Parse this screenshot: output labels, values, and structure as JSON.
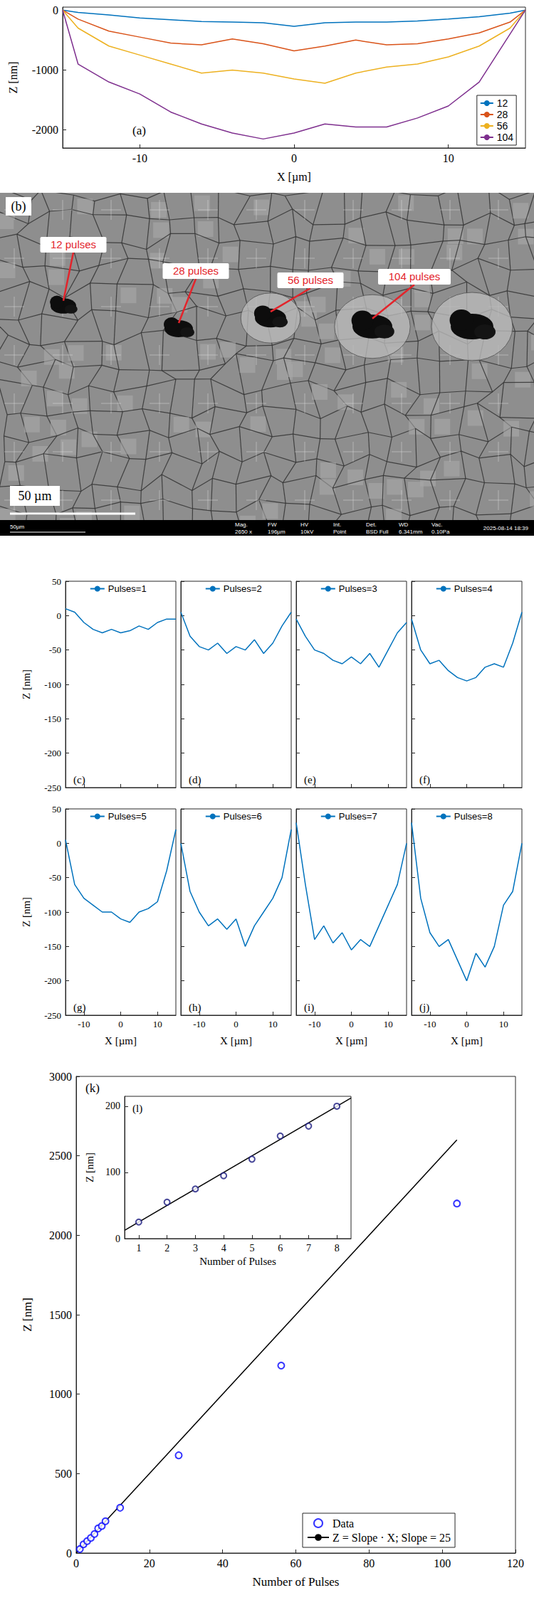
{
  "chart_data": [
    {
      "type": "line",
      "label": "(a)",
      "x_label": "X [µm]",
      "y_label": "Z [nm]",
      "x": [
        -15,
        -14,
        -12,
        -10,
        -8,
        -6,
        -4,
        -2,
        0,
        2,
        4,
        6,
        8,
        10,
        12,
        14,
        15
      ],
      "series": [
        {
          "name": "12",
          "color": "#0072bd",
          "values": [
            0,
            -40,
            -80,
            -130,
            -160,
            -190,
            -200,
            -210,
            -270,
            -210,
            -200,
            -200,
            -180,
            -150,
            -110,
            -50,
            0
          ]
        },
        {
          "name": "28",
          "color": "#d95319",
          "values": [
            0,
            -150,
            -350,
            -450,
            -550,
            -580,
            -480,
            -560,
            -680,
            -600,
            -500,
            -580,
            -560,
            -480,
            -380,
            -200,
            0
          ]
        },
        {
          "name": "56",
          "color": "#edb120",
          "values": [
            0,
            -300,
            -600,
            -750,
            -900,
            -1050,
            -1000,
            -1050,
            -1150,
            -1220,
            -1050,
            -950,
            -900,
            -780,
            -600,
            -300,
            0
          ]
        },
        {
          "name": "104",
          "color": "#7e2f8e",
          "values": [
            0,
            -900,
            -1200,
            -1400,
            -1700,
            -1900,
            -2050,
            -2150,
            -2050,
            -1900,
            -1950,
            -1950,
            -1800,
            -1600,
            -1200,
            -400,
            0
          ]
        }
      ],
      "xlim": [
        -15,
        15
      ],
      "xticks": [
        -10,
        0,
        10
      ],
      "ylim": [
        -2300,
        50
      ],
      "yticks": [
        -2000,
        -1000,
        0
      ],
      "legend": "lower right",
      "line_style": "solid"
    },
    {
      "type": "image",
      "label": "(b)",
      "annotations": [
        "12 pulses",
        "28 pulses",
        "56 pulses",
        "104 pulses"
      ],
      "scale_bar": "50 µm",
      "info_bar": {
        "scale": "50µm",
        "fields": [
          {
            "label": "Mag.",
            "value": "2650 x"
          },
          {
            "label": "FW",
            "value": "196µm"
          },
          {
            "label": "HV",
            "value": "10kV"
          },
          {
            "label": "Int.",
            "value": "Point"
          },
          {
            "label": "Det.",
            "value": "BSD Full"
          },
          {
            "label": "WD",
            "value": "6.341mm"
          },
          {
            "label": "Vac.",
            "value": "0.10Pa"
          }
        ],
        "date": "2025-08-14 18:39"
      }
    },
    {
      "type": "line",
      "label": "(c)",
      "y_label": "Z [nm]",
      "x": [
        -15,
        -12.5,
        -10,
        -7.5,
        -5,
        -2.5,
        0,
        2.5,
        5,
        7.5,
        10,
        12.5,
        15
      ],
      "series": [
        {
          "name": "Pulses=1",
          "color": "#0072bd",
          "values": [
            10,
            5,
            -10,
            -20,
            -25,
            -20,
            -25,
            -22,
            -15,
            -20,
            -10,
            -5,
            -5
          ]
        }
      ],
      "xlim": [
        -15,
        15
      ],
      "xticks": [
        -10,
        0,
        10
      ],
      "ylim": [
        -250,
        50
      ],
      "yticks": [
        -250,
        -200,
        -150,
        -100,
        -50,
        0,
        50
      ],
      "legend": "top",
      "tick_labels": "y"
    },
    {
      "type": "line",
      "label": "(d)",
      "x": [
        -15,
        -12.5,
        -10,
        -7.5,
        -5,
        -2.5,
        0,
        2.5,
        5,
        7.5,
        10,
        12.5,
        15
      ],
      "series": [
        {
          "name": "Pulses=2",
          "color": "#0072bd",
          "values": [
            5,
            -30,
            -45,
            -50,
            -40,
            -55,
            -45,
            -50,
            -35,
            -55,
            -40,
            -15,
            5
          ]
        }
      ],
      "xlim": [
        -15,
        15
      ],
      "xticks": [
        -10,
        0,
        10
      ],
      "ylim": [
        -250,
        50
      ],
      "yticks": [
        -250,
        -200,
        -150,
        -100,
        -50,
        0,
        50
      ],
      "legend": "top",
      "tick_labels": false
    },
    {
      "type": "line",
      "label": "(e)",
      "x": [
        -15,
        -12.5,
        -10,
        -7.5,
        -5,
        -2.5,
        0,
        2.5,
        5,
        7.5,
        10,
        12.5,
        15
      ],
      "series": [
        {
          "name": "Pulses=3",
          "color": "#0072bd",
          "values": [
            -5,
            -30,
            -50,
            -55,
            -65,
            -70,
            -60,
            -70,
            -55,
            -75,
            -50,
            -25,
            -10
          ]
        }
      ],
      "xlim": [
        -15,
        15
      ],
      "xticks": [
        -10,
        0,
        10
      ],
      "ylim": [
        -250,
        50
      ],
      "yticks": [
        -250,
        -200,
        -150,
        -100,
        -50,
        0,
        50
      ],
      "legend": "top",
      "tick_labels": false
    },
    {
      "type": "line",
      "label": "(f)",
      "x": [
        -15,
        -12.5,
        -10,
        -7.5,
        -5,
        -2.5,
        0,
        2.5,
        5,
        7.5,
        10,
        12.5,
        15
      ],
      "series": [
        {
          "name": "Pulses=4",
          "color": "#0072bd",
          "values": [
            -5,
            -50,
            -70,
            -65,
            -80,
            -90,
            -95,
            -90,
            -75,
            -70,
            -75,
            -40,
            5
          ]
        }
      ],
      "xlim": [
        -15,
        15
      ],
      "xticks": [
        -10,
        0,
        10
      ],
      "ylim": [
        -250,
        50
      ],
      "yticks": [
        -250,
        -200,
        -150,
        -100,
        -50,
        0,
        50
      ],
      "legend": "top",
      "tick_labels": false
    },
    {
      "type": "line",
      "label": "(g)",
      "x_label": "X [µm]",
      "y_label": "Z [nm]",
      "x": [
        -15,
        -12.5,
        -10,
        -7.5,
        -5,
        -2.5,
        0,
        2.5,
        5,
        7.5,
        10,
        12.5,
        15
      ],
      "series": [
        {
          "name": "Pulses=5",
          "color": "#0072bd",
          "values": [
            5,
            -60,
            -80,
            -90,
            -100,
            -100,
            -110,
            -115,
            -100,
            -95,
            -85,
            -40,
            20
          ]
        }
      ],
      "xlim": [
        -15,
        15
      ],
      "xticks": [
        -10,
        0,
        10
      ],
      "ylim": [
        -250,
        50
      ],
      "yticks": [
        -250,
        -200,
        -150,
        -100,
        -50,
        0,
        50
      ],
      "legend": "top"
    },
    {
      "type": "line",
      "label": "(h)",
      "x_label": "X [µm]",
      "x": [
        -15,
        -12.5,
        -10,
        -7.5,
        -5,
        -2.5,
        0,
        2.5,
        5,
        7.5,
        10,
        12.5,
        15
      ],
      "series": [
        {
          "name": "Pulses=6",
          "color": "#0072bd",
          "values": [
            0,
            -70,
            -100,
            -120,
            -110,
            -125,
            -110,
            -150,
            -120,
            -100,
            -80,
            -50,
            20
          ]
        }
      ],
      "xlim": [
        -15,
        15
      ],
      "xticks": [
        -10,
        0,
        10
      ],
      "ylim": [
        -250,
        50
      ],
      "yticks": [
        -250,
        -200,
        -150,
        -100,
        -50,
        0,
        50
      ],
      "legend": "top",
      "tick_labels": "x"
    },
    {
      "type": "line",
      "label": "(i)",
      "x_label": "X [µm]",
      "x": [
        -15,
        -12.5,
        -10,
        -7.5,
        -5,
        -2.5,
        0,
        2.5,
        5,
        7.5,
        10,
        12.5,
        15
      ],
      "series": [
        {
          "name": "Pulses=7",
          "color": "#0072bd",
          "values": [
            30,
            -60,
            -140,
            -120,
            -145,
            -130,
            -155,
            -140,
            -150,
            -120,
            -90,
            -60,
            0
          ]
        }
      ],
      "xlim": [
        -15,
        15
      ],
      "xticks": [
        -10,
        0,
        10
      ],
      "ylim": [
        -250,
        50
      ],
      "yticks": [
        -250,
        -200,
        -150,
        -100,
        -50,
        0,
        50
      ],
      "legend": "top",
      "tick_labels": "x"
    },
    {
      "type": "line",
      "label": "(j)",
      "x_label": "X [µm]",
      "x": [
        -15,
        -12.5,
        -10,
        -7.5,
        -5,
        -2.5,
        0,
        2.5,
        5,
        7.5,
        10,
        12.5,
        15
      ],
      "series": [
        {
          "name": "Pulses=8",
          "color": "#0072bd",
          "values": [
            30,
            -80,
            -130,
            -150,
            -140,
            -170,
            -200,
            -160,
            -180,
            -150,
            -90,
            -70,
            0
          ]
        }
      ],
      "xlim": [
        -15,
        15
      ],
      "xticks": [
        -10,
        0,
        10
      ],
      "ylim": [
        -250,
        50
      ],
      "yticks": [
        -250,
        -200,
        -150,
        -100,
        -50,
        0,
        50
      ],
      "legend": "top",
      "tick_labels": "x"
    },
    {
      "type": "scatter",
      "label": "(k)",
      "x_label": "Number of Pulses",
      "y_label": "Z [nm]",
      "series": [
        {
          "name": "Data",
          "type": "scatter",
          "marker": "open_circle",
          "color": "#0000ff",
          "x": [
            1,
            2,
            3,
            4,
            5,
            6,
            7,
            8,
            12,
            28,
            56,
            104
          ],
          "values": [
            25,
            55,
            75,
            95,
            120,
            155,
            170,
            200,
            285,
            615,
            1180,
            2200
          ]
        },
        {
          "name": "Z = Slope · X; Slope = 25",
          "type": "line",
          "line_style": "solid",
          "color": "#000000",
          "x": [
            0,
            104
          ],
          "values": [
            0,
            2600
          ]
        }
      ],
      "xlim": [
        0,
        120
      ],
      "xticks": [
        0,
        20,
        40,
        60,
        80,
        100,
        120
      ],
      "ylim": [
        0,
        3000
      ],
      "yticks": [
        0,
        500,
        1000,
        1500,
        2000,
        2500,
        3000
      ],
      "legend": "lower right"
    },
    {
      "type": "scatter",
      "label": "(l)",
      "x_label": "Number of Pulses",
      "y_label": "Z [nm]",
      "series": [
        {
          "type": "scatter",
          "marker": "open_circle",
          "color": "#1a1a80",
          "x": [
            1,
            2,
            3,
            4,
            5,
            6,
            7,
            8
          ],
          "values": [
            25,
            55,
            75,
            95,
            120,
            155,
            170,
            200
          ]
        },
        {
          "type": "line",
          "line_style": "solid",
          "color": "#000000",
          "x": [
            0.5,
            8.5
          ],
          "values": [
            12.5,
            212.5
          ]
        }
      ],
      "xlim": [
        0.5,
        8.5
      ],
      "xticks": [
        1,
        2,
        3,
        4,
        5,
        6,
        7,
        8
      ],
      "ylim": [
        0,
        215
      ],
      "yticks": [
        0,
        100,
        200
      ]
    }
  ]
}
